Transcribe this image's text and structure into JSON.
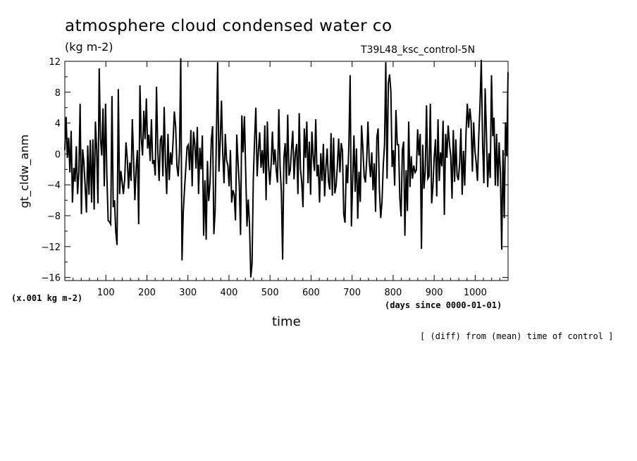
{
  "chart_data": {
    "type": "line",
    "title": "atmosphere cloud condensed water co",
    "subtitle": "(kg m-2)",
    "experiment": "T39L48_ksc_control-5N",
    "ylabel": "gt_cldw_anm",
    "xlabel": "time",
    "x_units": "(days since 0000-01-01)",
    "y_scale_note": "(x.001 kg m-2)",
    "note": "[ (diff) from (mean) time of control ]",
    "xlim": [
      0,
      1080
    ],
    "ylim": [
      -16.4,
      12
    ],
    "x_ticks": [
      100,
      200,
      300,
      400,
      500,
      600,
      700,
      800,
      900,
      1000
    ],
    "y_ticks": [
      12,
      8,
      4,
      0,
      -4,
      -8,
      -12,
      -16
    ],
    "series": [
      {
        "values": [
          0.5,
          4.8,
          -0.5,
          2.1,
          -2.4,
          3.0,
          -6.3,
          -1.8,
          -3.6,
          1.0,
          -5.2,
          -2.4,
          6.5,
          -7.8,
          0.6,
          -1.2,
          -4.3,
          -7.6,
          1.1,
          -5.3,
          1.8,
          -6.3,
          1.9,
          -7.2,
          4.2,
          0.5,
          -6.4,
          11.1,
          1.9,
          -0.2,
          5.9,
          -4.2,
          6.5,
          -2.6,
          -8.6,
          -8.8,
          -9.1,
          7.5,
          -6.9,
          -6.0,
          -10.1,
          -11.8,
          8.4,
          -5.2,
          -2.2,
          -3.6,
          -5.2,
          -3.2,
          1.5,
          -0.6,
          -4.5,
          -1.1,
          -3.5,
          4.5,
          -0.8,
          -6.0,
          -1.9,
          0.5,
          -9.1,
          8.9,
          2.1,
          -0.2,
          5.6,
          1.9,
          7.2,
          0.7,
          2.5,
          -0.9,
          4.5,
          -1.3,
          -0.8,
          -2.8,
          8.7,
          0.5,
          -3.5,
          1.8,
          2.4,
          -2.9,
          6.1,
          -1.1,
          -5.2,
          2.6,
          -3.4,
          0.2,
          -1.4,
          1.6,
          5.5,
          3.5,
          -1.6,
          -2.9,
          0.4,
          12.4,
          -13.8,
          -7.5,
          -4.5,
          -1.8,
          0.9,
          1.2,
          -2.1,
          3.1,
          -4.2,
          2.9,
          1.3,
          -1.9,
          3.5,
          -5.2,
          0.8,
          -2.0,
          2.4,
          -10.6,
          -3.4,
          -11.1,
          -0.9,
          -6.1,
          -3.7,
          1.8,
          3.6,
          -10.4,
          -7.4,
          2.3,
          11.9,
          -2.3,
          1.6,
          6.9,
          0.2,
          -3.8,
          2.6,
          -0.8,
          -1.5,
          -4.2,
          0.5,
          -6.3,
          -4.7,
          -5.3,
          -8.6,
          2.5,
          -1.1,
          -4.0,
          -10.5,
          5.0,
          0.2,
          4.9,
          -2.4,
          -9.4,
          -5.9,
          -9.1,
          -16.0,
          -14.2,
          -3.2,
          1.9,
          6.0,
          -2.9,
          0.3,
          2.8,
          -1.8,
          0.5,
          -2.5,
          3.7,
          -6.0,
          4.2,
          -1.6,
          -4.0,
          -1.3,
          2.9,
          -1.4,
          0.6,
          -2.1,
          -3.7,
          5.8,
          -1.7,
          -4.9,
          -13.7,
          -0.5,
          1.4,
          -3.9,
          5.1,
          -2.8,
          -2.1,
          0.6,
          3.0,
          -3.3,
          0.1,
          1.3,
          -5.2,
          5.3,
          -1.9,
          -3.7,
          -6.9,
          3.3,
          -0.5,
          4.2,
          -3.8,
          1.6,
          -5.3,
          2.9,
          -0.4,
          -2.2,
          4.5,
          -2.9,
          -1.4,
          -6.3,
          0.1,
          -3.5,
          1.3,
          -5.5,
          -1.7,
          0.7,
          -3.5,
          -4.6,
          2.7,
          -5.4,
          2.1,
          -5.1,
          -4.1,
          -1.5,
          2.0,
          -2.4,
          1.4,
          0.4,
          -7.8,
          -8.9,
          -1.4,
          -3.8,
          1.2,
          10.2,
          -9.4,
          -3.4,
          2.4,
          -4.9,
          0.7,
          -8.4,
          -2.3,
          -6.2,
          3.7,
          0.9,
          -2.9,
          -3.7,
          -0.8,
          4.2,
          -0.9,
          -3.0,
          0.2,
          -4.7,
          -1.2,
          -7.5,
          2.1,
          3.3,
          -4.6,
          -8.3,
          -6.2,
          -1.5,
          1.2,
          11.9,
          -3.2,
          9.2,
          10.3,
          8.1,
          -1.7,
          0.5,
          -4.1,
          5.7,
          1.2,
          1.2,
          -5.7,
          -8.1,
          0.5,
          1.6,
          -10.6,
          -2.1,
          -7.4,
          4.2,
          -4.3,
          -0.3,
          -3.2,
          -1.5,
          -2.4,
          -2.1,
          3.2,
          -0.2,
          2.6,
          -12.3,
          1.2,
          -4.5,
          -2.2,
          6.3,
          -3.2,
          -2.9,
          6.5,
          -6.4,
          -4.2,
          -0.4,
          1.9,
          -5.5,
          4.5,
          -3.5,
          0.2,
          -1.6,
          4.3,
          -7.9,
          2.6,
          -0.5,
          3.7,
          1.3,
          -0.3,
          -5.8,
          3.1,
          -3.6,
          1.9,
          -2.8,
          -3.4,
          -1.2,
          3.3,
          -5.3,
          0.4,
          -4.1,
          2.8,
          6.5,
          3.4,
          5.9,
          4.2,
          -2.3,
          4.1,
          0.4,
          -1.2,
          -3.5,
          2.2,
          6.4,
          12.2,
          1.4,
          -3.8,
          8.5,
          2.7,
          -4.3,
          0.1,
          -3.1,
          10.2,
          2.3,
          4.7,
          -4.1,
          2.6,
          -4.2,
          1.5,
          -2.6,
          -12.4,
          0.5,
          -8.3,
          4.1,
          -0.3,
          10.6
        ]
      }
    ]
  },
  "colors": {
    "line": "#000000",
    "axes": "#000000",
    "background": "#ffffff"
  }
}
